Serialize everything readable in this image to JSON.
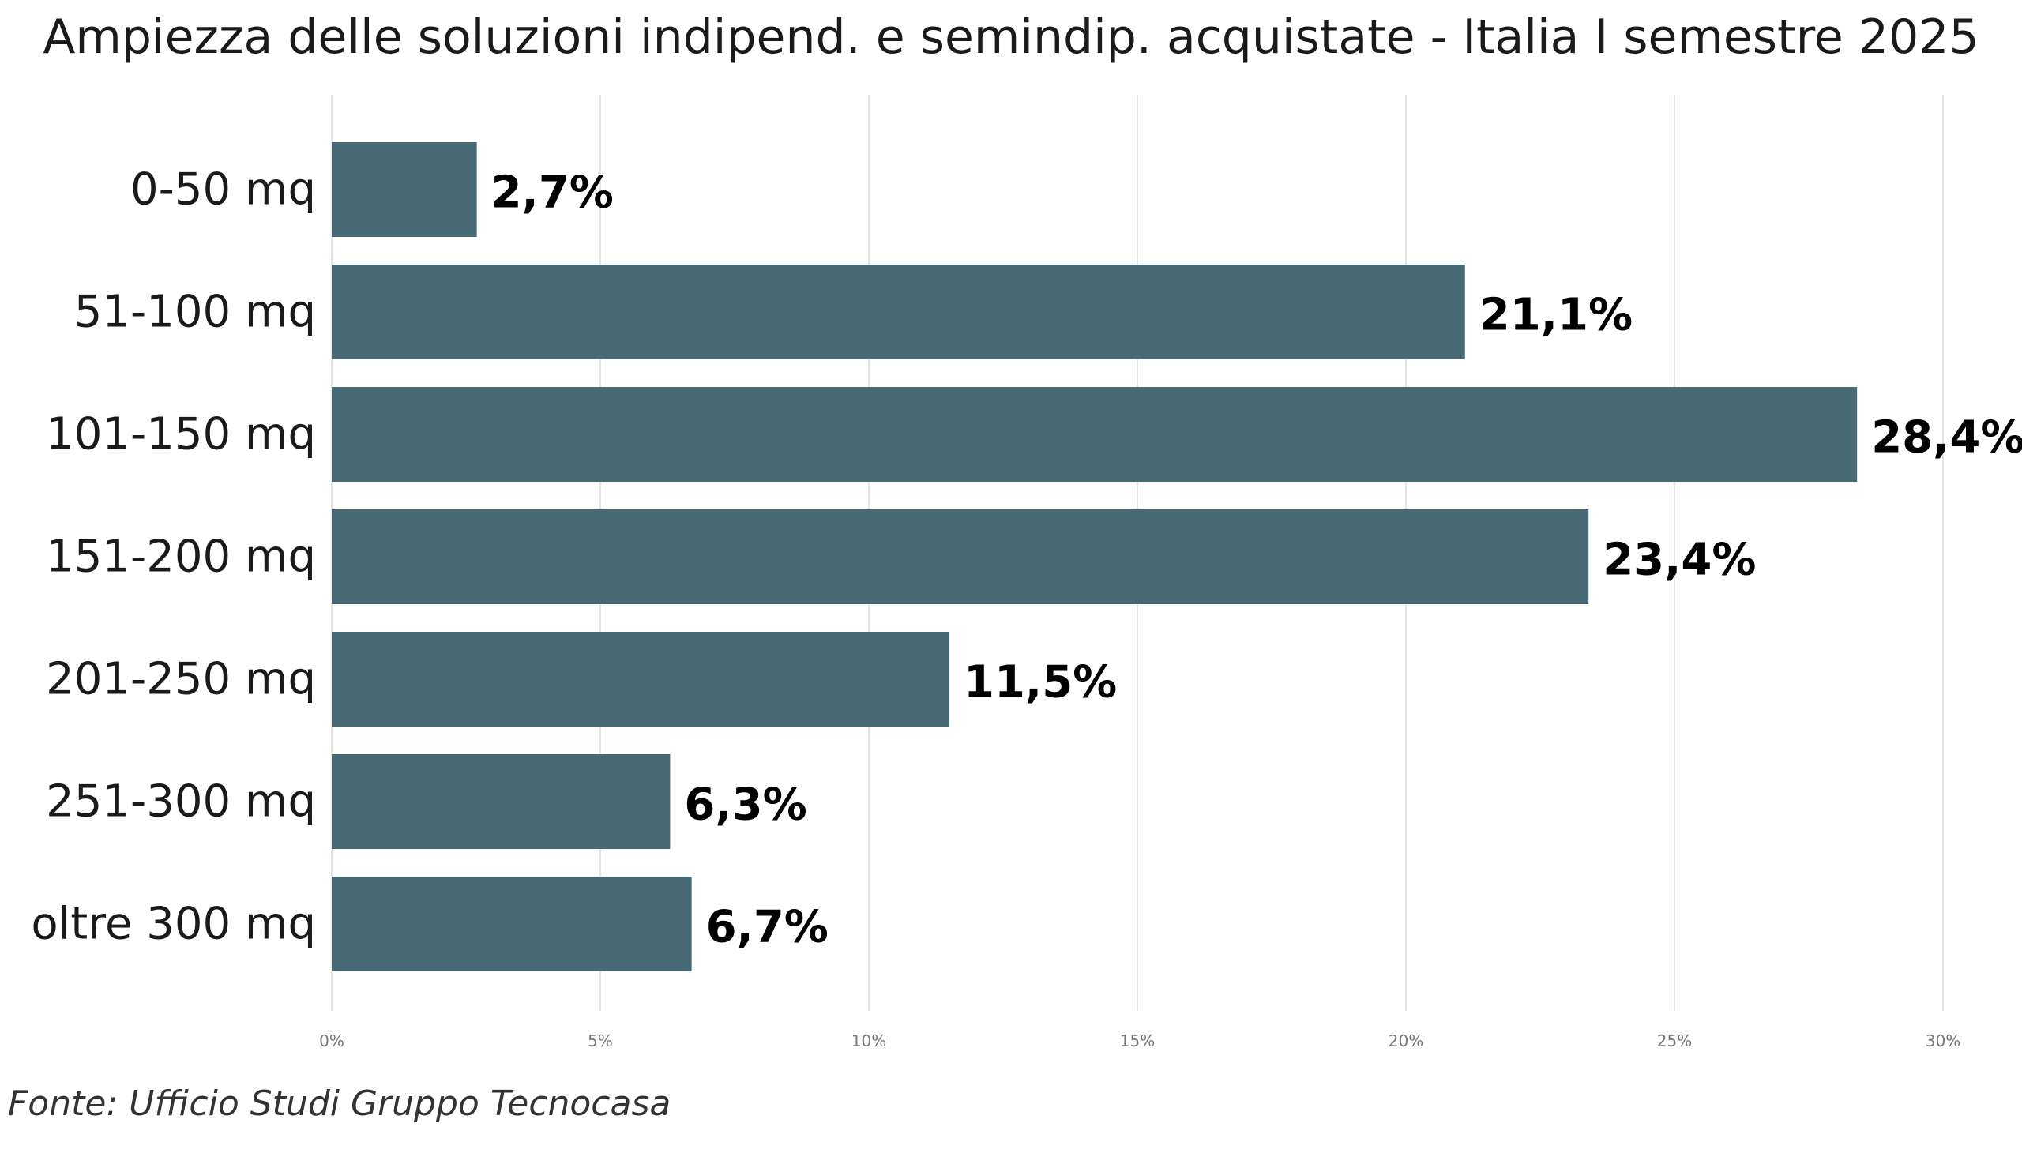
{
  "chart_data": {
    "type": "bar",
    "orientation": "horizontal",
    "title": "Ampiezza delle soluzioni indipend. e semindip. acquistate - Italia I semestre 2025",
    "source": "Fonte: Ufficio Studi Gruppo Tecnocasa",
    "categories": [
      "0-50 mq",
      "51-100 mq",
      "101-150 mq",
      "151-200 mq",
      "201-250 mq",
      "251-300 mq",
      "oltre 300 mq"
    ],
    "values": [
      2.7,
      21.1,
      28.4,
      23.4,
      11.5,
      6.3,
      6.7
    ],
    "value_labels": [
      "2,7%",
      "21,1%",
      "28,4%",
      "23,4%",
      "11,5%",
      "6,3%",
      "6,7%"
    ],
    "xlim": [
      0,
      30
    ],
    "x_ticks": [
      0,
      5,
      10,
      15,
      20,
      25,
      30
    ],
    "x_tick_labels": [
      "0%",
      "5%",
      "10%",
      "15%",
      "20%",
      "25%",
      "30%"
    ],
    "grid": "vertical",
    "bar_color": "#486a75"
  }
}
